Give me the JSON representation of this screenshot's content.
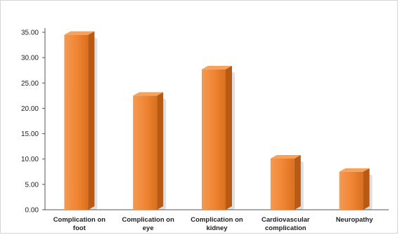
{
  "chart_data": {
    "type": "bar",
    "title": "",
    "xlabel": "",
    "ylabel": "",
    "categories": [
      [
        "Complication on",
        "foot"
      ],
      [
        "Complication on",
        "eye"
      ],
      [
        "Complication on",
        "kidney"
      ],
      [
        "Cardiovascular",
        "complication"
      ],
      [
        "Neuropathy"
      ]
    ],
    "values": [
      34.5,
      22.5,
      27.7,
      10.1,
      7.5
    ],
    "ylim": [
      0,
      35
    ],
    "yticks": [
      "0.00",
      "5.00",
      "10.00",
      "15.00",
      "20.00",
      "25.00",
      "30.00",
      "35.00"
    ],
    "grid": false,
    "legend": "none",
    "colors": {
      "bar_front": "#f08433",
      "bar_side": "#b85a14",
      "bar_top": "#f7a15a",
      "axis": "#555555"
    }
  }
}
